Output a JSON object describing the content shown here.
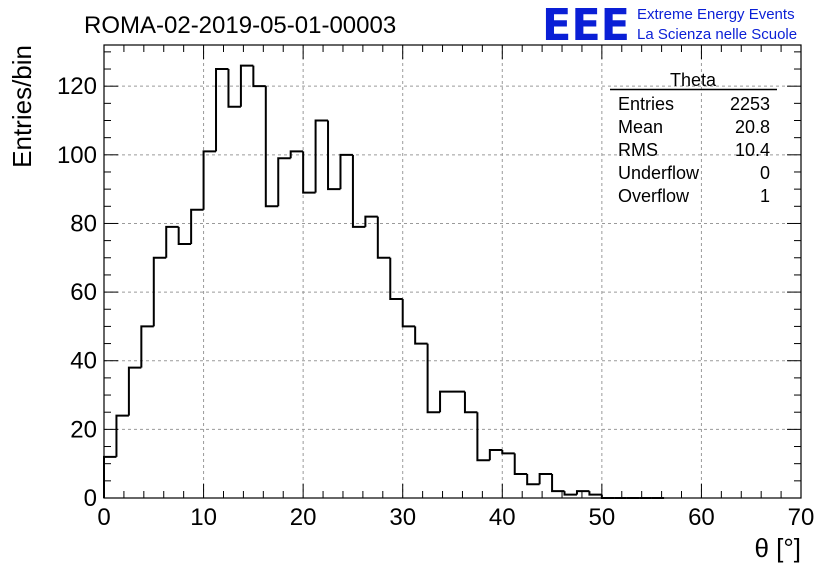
{
  "header": {
    "run_title": "ROMA-02-2019-05-01-00003",
    "logo_text": "EEE",
    "logo_line1": "Extreme Energy Events",
    "logo_line2": "La Scienza nelle Scuole",
    "logo_color": "#0a1fd6"
  },
  "stats_box": {
    "title": "Theta",
    "rows": [
      {
        "label": "Entries",
        "value": "2253"
      },
      {
        "label": "Mean",
        "value": "20.8"
      },
      {
        "label": "RMS",
        "value": "10.4"
      },
      {
        "label": "Underflow",
        "value": "0"
      },
      {
        "label": "Overflow",
        "value": "1"
      }
    ]
  },
  "chart_data": {
    "type": "bar",
    "style": "step-histogram",
    "bin_edges": [
      0,
      1.25,
      2.5,
      3.75,
      5,
      6.25,
      7.5,
      8.75,
      10,
      11.25,
      12.5,
      13.75,
      15,
      16.25,
      17.5,
      18.75,
      20,
      21.25,
      22.5,
      23.75,
      25,
      26.25,
      27.5,
      28.75,
      30,
      31.25,
      32.5,
      33.75,
      35,
      36.25,
      37.5,
      38.75,
      40,
      41.25,
      42.5,
      43.75,
      45,
      46.25,
      47.5,
      48.75,
      50,
      51.25,
      52.5,
      53.75,
      55,
      56.25
    ],
    "values": [
      12,
      24,
      38,
      50,
      70,
      79,
      74,
      84,
      101,
      125,
      114,
      126,
      120,
      85,
      99,
      101,
      89,
      110,
      90,
      100,
      79,
      82,
      70,
      58,
      50,
      45,
      25,
      31,
      31,
      25,
      11,
      14,
      13,
      7,
      4,
      7,
      2,
      1,
      2,
      1,
      0,
      0,
      0,
      0,
      0
    ],
    "xlabel": "θ [°]",
    "ylabel": "Entries/bin",
    "xlim": [
      0,
      70
    ],
    "ylim": [
      0,
      132
    ],
    "x_ticks": [
      0,
      10,
      20,
      30,
      40,
      50,
      60,
      70
    ],
    "y_ticks": [
      0,
      20,
      40,
      60,
      80,
      100,
      120
    ],
    "grid": true,
    "line_color": "#000000",
    "grid_color": "#9a9a9a"
  }
}
